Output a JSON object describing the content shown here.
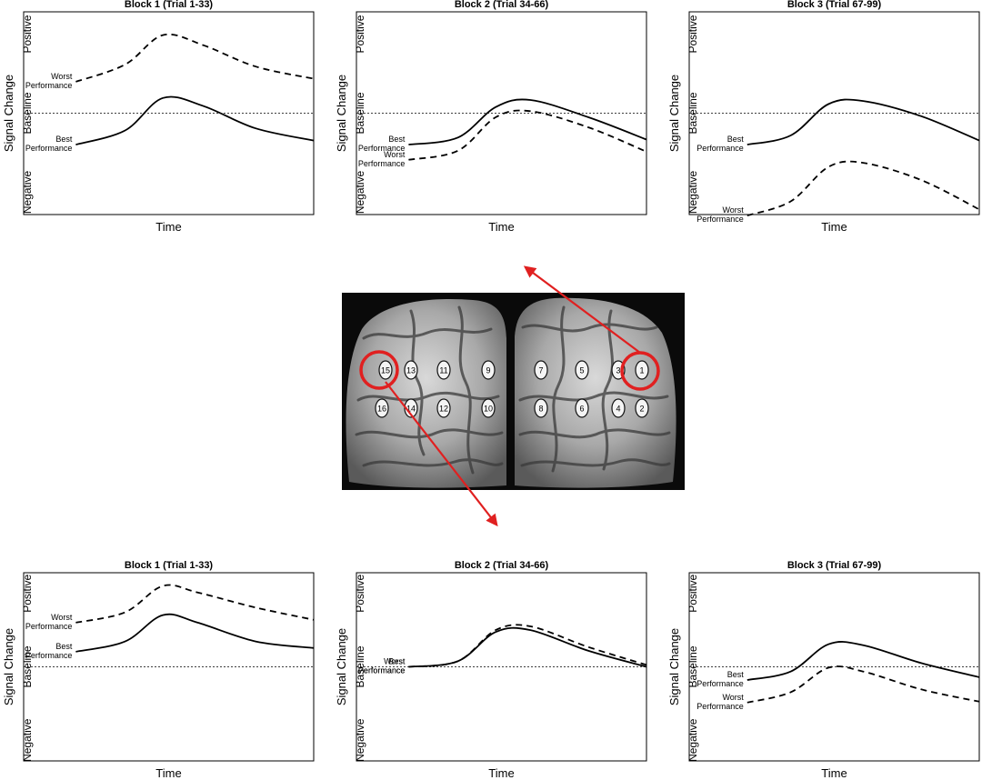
{
  "chart_data": [
    {
      "type": "line",
      "title": "Block 1 (Trial 1-33)",
      "xlabel": "Time",
      "ylabel": "Signal Change",
      "y_tick_labels": [
        "Positive",
        "Baseline",
        "Negative"
      ],
      "ylim": [
        -1,
        1
      ],
      "xlim": [
        0,
        1
      ],
      "baseline": 0,
      "series": [
        {
          "name": "Worst Performance",
          "style": "dashed",
          "x": [
            0.18,
            0.35,
            0.48,
            0.62,
            0.8,
            1.0
          ],
          "y": [
            0.31,
            0.48,
            0.77,
            0.67,
            0.46,
            0.34
          ]
        },
        {
          "name": "Best Performance",
          "style": "solid",
          "x": [
            0.18,
            0.35,
            0.48,
            0.62,
            0.8,
            1.0
          ],
          "y": [
            -0.31,
            -0.17,
            0.15,
            0.07,
            -0.15,
            -0.27
          ]
        }
      ]
    },
    {
      "type": "line",
      "title": "Block 2 (Trial 34-66)",
      "xlabel": "Time",
      "ylabel": "Signal Change",
      "y_tick_labels": [
        "Positive",
        "Baseline",
        "Negative"
      ],
      "ylim": [
        -1,
        1
      ],
      "xlim": [
        0,
        1
      ],
      "baseline": 0,
      "series": [
        {
          "name": "Best Performance",
          "style": "solid",
          "x": [
            0.18,
            0.35,
            0.48,
            0.6,
            0.8,
            1.0
          ],
          "y": [
            -0.31,
            -0.24,
            0.06,
            0.13,
            -0.04,
            -0.26
          ]
        },
        {
          "name": "Worst Performance",
          "style": "dashed",
          "x": [
            0.18,
            0.35,
            0.48,
            0.6,
            0.8,
            1.0
          ],
          "y": [
            -0.46,
            -0.37,
            -0.04,
            0.02,
            -0.14,
            -0.38
          ]
        }
      ]
    },
    {
      "type": "line",
      "title": "Block 3 (Trial 67-99)",
      "xlabel": "Time",
      "ylabel": "Signal Change",
      "y_tick_labels": [
        "Positive",
        "Baseline",
        "Negative"
      ],
      "ylim": [
        -1,
        1
      ],
      "xlim": [
        0,
        1
      ],
      "baseline": 0,
      "series": [
        {
          "name": "Best Performance",
          "style": "solid",
          "x": [
            0.2,
            0.35,
            0.48,
            0.6,
            0.8,
            1.0
          ],
          "y": [
            -0.31,
            -0.22,
            0.09,
            0.12,
            -0.03,
            -0.27
          ]
        },
        {
          "name": "Worst Performance",
          "style": "dashed",
          "x": [
            0.2,
            0.35,
            0.48,
            0.6,
            0.8,
            1.0
          ],
          "y": [
            -1.01,
            -0.87,
            -0.53,
            -0.49,
            -0.66,
            -0.95
          ]
        }
      ]
    },
    {
      "type": "line",
      "title": "Block 1 (Trial 1-33)",
      "xlabel": "Time",
      "ylabel": "Signal Change",
      "y_tick_labels": [
        "Positive",
        "Baseline",
        "Negative"
      ],
      "ylim": [
        -1,
        1
      ],
      "xlim": [
        0,
        1
      ],
      "baseline": 0,
      "series": [
        {
          "name": "Worst Performance",
          "style": "dashed",
          "x": [
            0.18,
            0.35,
            0.48,
            0.6,
            0.8,
            1.0
          ],
          "y": [
            0.47,
            0.58,
            0.86,
            0.79,
            0.63,
            0.5
          ]
        },
        {
          "name": "Best Performance",
          "style": "solid",
          "x": [
            0.18,
            0.35,
            0.48,
            0.6,
            0.8,
            1.0
          ],
          "y": [
            0.16,
            0.27,
            0.55,
            0.47,
            0.27,
            0.2
          ]
        }
      ]
    },
    {
      "type": "line",
      "title": "Block 2 (Trial 34-66)",
      "xlabel": "Time",
      "ylabel": "Signal Change",
      "y_tick_labels": [
        "Positive",
        "Baseline",
        "Negative"
      ],
      "ylim": [
        -1,
        1
      ],
      "xlim": [
        0,
        1
      ],
      "baseline": 0,
      "series": [
        {
          "name": "Worst Performance",
          "style": "dashed",
          "x": [
            0.18,
            0.35,
            0.48,
            0.6,
            0.8,
            1.0
          ],
          "y": [
            0.0,
            0.06,
            0.39,
            0.43,
            0.21,
            0.02
          ]
        },
        {
          "name": "Best Performance",
          "style": "solid",
          "x": [
            0.18,
            0.35,
            0.48,
            0.6,
            0.8,
            1.0
          ],
          "y": [
            0.0,
            0.06,
            0.37,
            0.39,
            0.17,
            0.0
          ]
        }
      ]
    },
    {
      "type": "line",
      "title": "Block 3 (Trial 67-99)",
      "xlabel": "Time",
      "ylabel": "Signal Change",
      "y_tick_labels": [
        "Positive",
        "Baseline",
        "Negative"
      ],
      "ylim": [
        -1,
        1
      ],
      "xlim": [
        0,
        1
      ],
      "baseline": 0,
      "series": [
        {
          "name": "Best Performance",
          "style": "solid",
          "x": [
            0.2,
            0.35,
            0.48,
            0.6,
            0.8,
            1.0
          ],
          "y": [
            -0.14,
            -0.05,
            0.24,
            0.23,
            0.04,
            -0.11
          ]
        },
        {
          "name": "Worst Performance",
          "style": "dashed",
          "x": [
            0.2,
            0.35,
            0.48,
            0.6,
            0.8,
            1.0
          ],
          "y": [
            -0.38,
            -0.27,
            -0.01,
            -0.05,
            -0.24,
            -0.37
          ]
        }
      ]
    }
  ],
  "brain": {
    "electrode_labels": [
      "15",
      "13",
      "11",
      "9",
      "7",
      "5",
      "3",
      "1",
      "16",
      "14",
      "12",
      "10",
      "8",
      "6",
      "4",
      "2"
    ],
    "highlighted": [
      "15",
      "1"
    ],
    "highlight_color": "#e02020",
    "arrow_color": "#e02020"
  }
}
